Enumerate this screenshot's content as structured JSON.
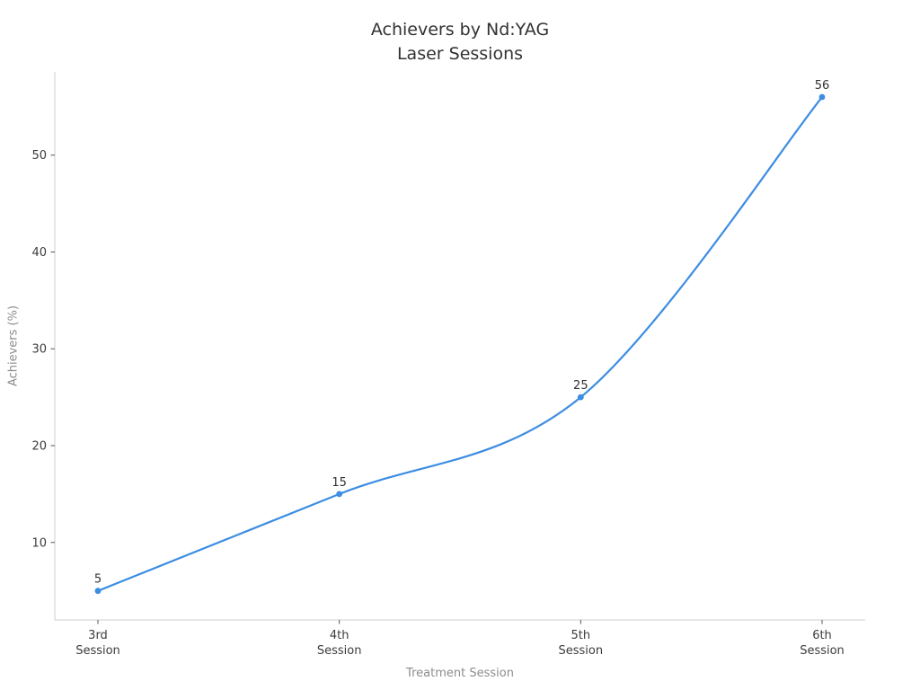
{
  "page": {
    "background": "#ffffff"
  },
  "chart_data": {
    "type": "line",
    "title": "Achievers by Nd:YAG Laser Sessions",
    "title_lines": [
      "Achievers by Nd:YAG",
      "Laser Sessions"
    ],
    "xlabel": "Treatment Session",
    "ylabel": "Achievers (%)",
    "categories": [
      "3rd Session",
      "4th Session",
      "5th Session",
      "6th Session"
    ],
    "values": [
      5,
      15,
      25,
      56
    ],
    "point_labels": [
      "5",
      "15",
      "25",
      "56"
    ],
    "yticks": [
      10,
      20,
      30,
      40,
      50
    ],
    "ylim": [
      2,
      58.6
    ],
    "line_shape": "spline",
    "markers": "dot",
    "grid": false,
    "legend": "none",
    "colors": {
      "line": "#3d8de2",
      "marker": "#3d8de2",
      "spine": "#cfcfcf",
      "tick": "#555555",
      "tick_label": "#3c3c3c",
      "axis_label": "#8c8c8c",
      "title": "#323232",
      "data_label": "#323232",
      "background": "#ffffff"
    }
  }
}
